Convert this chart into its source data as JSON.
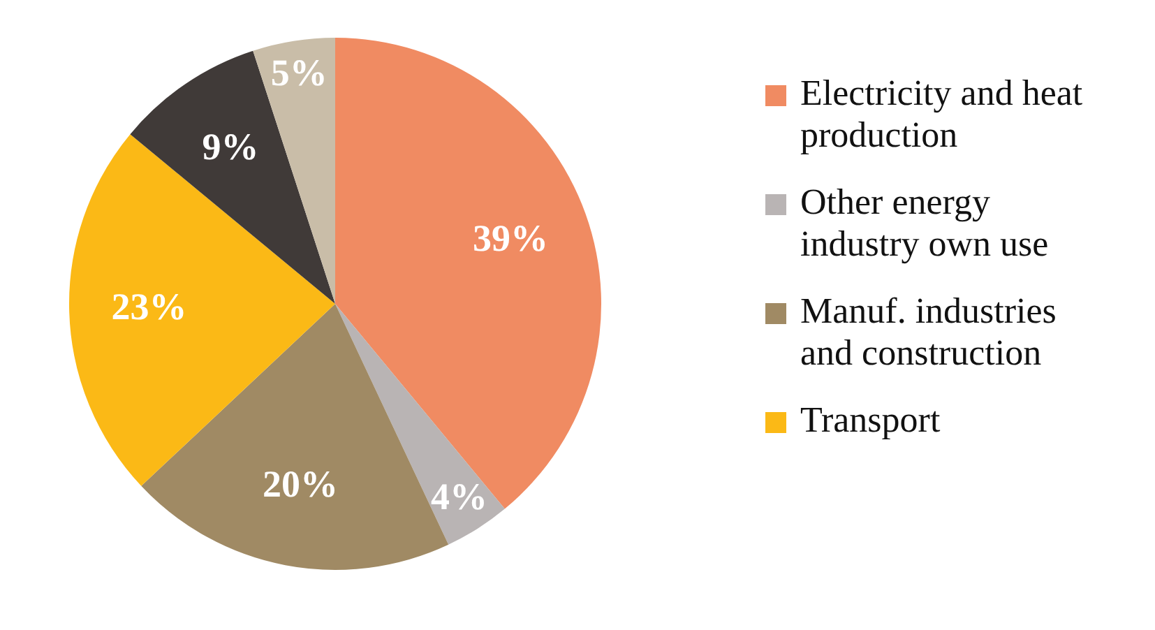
{
  "chart_data": {
    "type": "pie",
    "categories": [
      "Electricity and heat production",
      "Other energy industry own use",
      "Manuf. industries and construction",
      "Transport",
      null,
      null
    ],
    "values": [
      39,
      4,
      20,
      23,
      9,
      5
    ],
    "colors": [
      "#f08b62",
      "#b9b4b4",
      "#a08a64",
      "#fbb916",
      "#403a38",
      "#c9bda8"
    ],
    "value_labels": [
      "39%",
      "4%",
      "20%",
      "23%",
      "9%",
      "5%"
    ],
    "legend": "right"
  }
}
